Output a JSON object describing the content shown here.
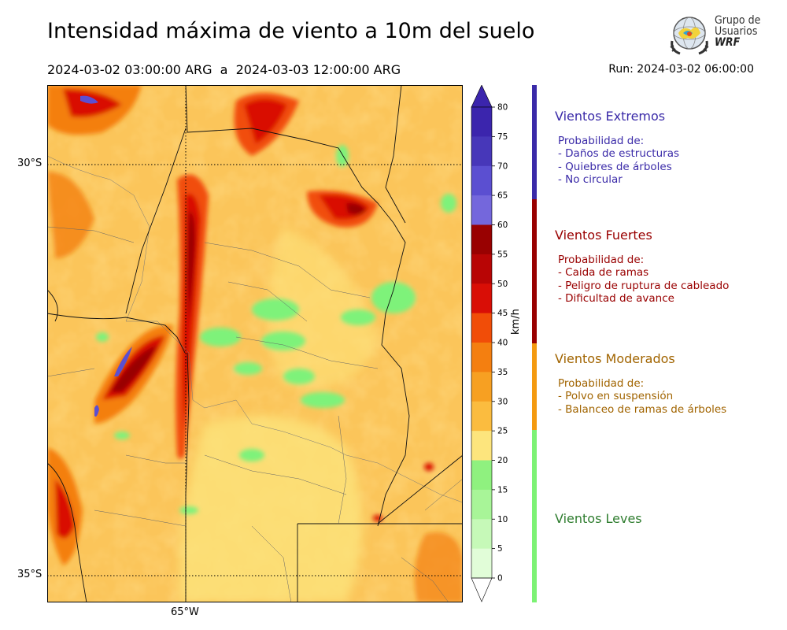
{
  "title": "Intensidad máxima de viento a 10m del suelo",
  "period": "2024-03-02 03:00:00 ARG  a  2024-03-03 12:00:00 ARG",
  "run": "Run: 2024-03-02 06:00:00",
  "logo": {
    "line1": "Grupo de",
    "line2": "Usuarios",
    "line3": "WRF"
  },
  "axes": {
    "lat_labels": [
      "30°S",
      "35°S"
    ],
    "lon_labels": [
      "65°W"
    ]
  },
  "colorbar": {
    "unit": "km/h",
    "ticks": [
      "0",
      "5",
      "10",
      "15",
      "20",
      "25",
      "30",
      "35",
      "40",
      "45",
      "50",
      "55",
      "60",
      "65",
      "70",
      "75",
      "80"
    ],
    "colors": [
      "#f7fff7",
      "#e1fdd8",
      "#c6f9b8",
      "#a8f598",
      "#8ff17f",
      "#fde57d",
      "#fbbc3f",
      "#f7a022",
      "#f47f10",
      "#f14d08",
      "#d90e06",
      "#b80505",
      "#990101",
      "#7467dc",
      "#5b4fd1",
      "#4737b9",
      "#3b25ad"
    ],
    "over_color": "#3b25ad",
    "under_color": "#ffffff"
  },
  "categories": [
    {
      "title": "Vientos Extremos",
      "color": "#3a2aa8",
      "text_color": "#3a2aa8",
      "desc": "Probabilidad de:\n- Daños de estructuras\n- Quiebres de árboles\n- No circular"
    },
    {
      "title": "Vientos Fuertes",
      "color": "#990000",
      "text_color": "#990000",
      "desc": "Probabilidad de:\n- Caida de ramas\n- Peligro de ruptura de cableado\n- Dificultad de avance"
    },
    {
      "title": "Vientos Moderados",
      "color": "#f49a10",
      "text_color": "#a16400",
      "desc": "Probabilidad de:\n- Polvo en suspensión\n- Balanceo de ramas de árboles"
    },
    {
      "title": "Vientos Leves",
      "color": "#7cf274",
      "text_color": "#2f7d2f",
      "desc": ""
    }
  ]
}
